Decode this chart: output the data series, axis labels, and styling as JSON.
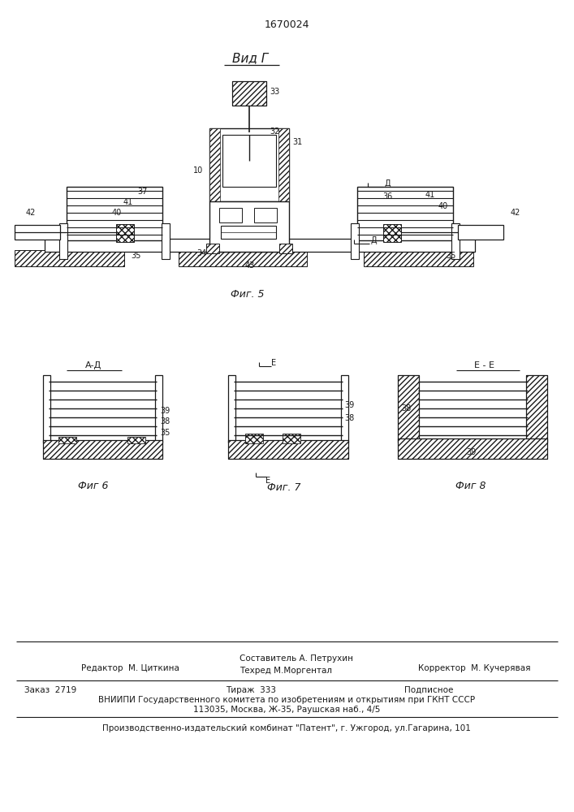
{
  "patent_number": "1670024",
  "title_view": "Вид Г",
  "fig5_label": "Фиг. 5",
  "fig6_label": "Фиг 6",
  "fig7_label": "Фиг. 7",
  "fig8_label": "Фиг 8",
  "section_ad": "А-Д",
  "section_ee": "Е - Е",
  "bg_color": "#ffffff",
  "line_color": "#1a1a1a",
  "footer_editor": "Редактор  М. Циткина",
  "footer_composer": "Составитель А. Петрухин",
  "footer_techred": "Техред М.Моргентал",
  "footer_corrector": "Корректор  М. Кучерявая",
  "footer_order": "Заказ  2719",
  "footer_tirazh": "Тираж  333",
  "footer_podpisnoe": "Подписное",
  "footer_vniipи": "ВНИИПИ Государственного комитета по изобретениям и открытиям при ГКНТ СССР",
  "footer_address": "113035, Москва, Ж-35, Раушская наб., 4/5",
  "footer_publisher": "Производственно-издательский комбинат \"Патент\", г. Ужгород, ул.Гагарина, 101"
}
